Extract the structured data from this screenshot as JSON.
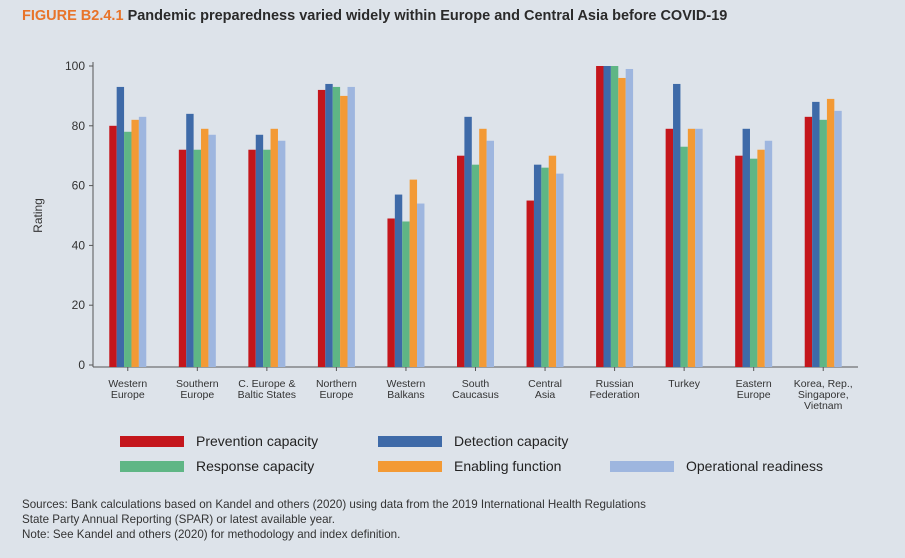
{
  "figure": {
    "label": "FIGURE B2.4.1",
    "title": "Pandemic preparedness varied widely within Europe and Central Asia before COVID-19"
  },
  "chart_data": {
    "type": "bar",
    "ylabel": "Rating",
    "xlabel": "",
    "ylim": [
      0,
      100
    ],
    "yticks": [
      0,
      20,
      40,
      60,
      80,
      100
    ],
    "grid": false,
    "legend_position": "bottom",
    "categories": [
      [
        "Western",
        "Europe"
      ],
      [
        "Southern",
        "Europe"
      ],
      [
        "C. Europe &",
        "Baltic States"
      ],
      [
        "Northern",
        "Europe"
      ],
      [
        "Western",
        "Balkans"
      ],
      [
        "South",
        "Caucasus"
      ],
      [
        "Central",
        "Asia"
      ],
      [
        "Russian",
        "Federation"
      ],
      [
        "Turkey"
      ],
      [
        "Eastern",
        "Europe"
      ],
      [
        "Korea, Rep.,",
        "Singapore,",
        "Vietnam"
      ]
    ],
    "series": [
      {
        "name": "Prevention capacity",
        "color": "#c4161c",
        "values": [
          80,
          72,
          72,
          92,
          49,
          70,
          55,
          100,
          79,
          70,
          83
        ]
      },
      {
        "name": "Detection capacity",
        "color": "#3e6aa8",
        "values": [
          93,
          84,
          77,
          94,
          57,
          83,
          67,
          100,
          94,
          79,
          88
        ]
      },
      {
        "name": "Response capacity",
        "color": "#5fb685",
        "values": [
          78,
          72,
          72,
          93,
          48,
          67,
          66,
          100,
          73,
          69,
          82
        ]
      },
      {
        "name": "Enabling function",
        "color": "#f39a35",
        "values": [
          82,
          79,
          79,
          90,
          62,
          79,
          70,
          96,
          79,
          72,
          89
        ]
      },
      {
        "name": "Operational readiness",
        "color": "#9eb6df",
        "values": [
          83,
          77,
          75,
          93,
          54,
          75,
          64,
          99,
          79,
          75,
          85
        ]
      }
    ]
  },
  "footer": {
    "sources_line1": "Sources: Bank calculations based on Kandel and others (2020) using data from the 2019 International Health Regulations",
    "sources_line2": "State Party Annual Reporting (SPAR) or latest available year.",
    "note": "Note: See Kandel and others (2020) for methodology and index definition."
  }
}
